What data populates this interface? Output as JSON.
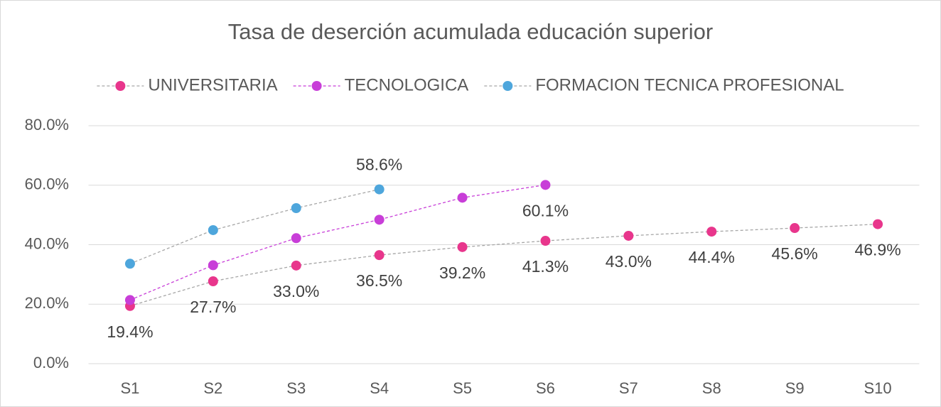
{
  "chart_data": {
    "type": "line",
    "title": "Tasa de deserción acumulada educación superior",
    "categories": [
      "S1",
      "S2",
      "S3",
      "S4",
      "S5",
      "S6",
      "S7",
      "S8",
      "S9",
      "S10"
    ],
    "series": [
      {
        "name": "UNIVERSITARIA",
        "color": "#e8368c",
        "line_color": "#a6a6a6",
        "label_position": "below",
        "values": [
          19.4,
          27.7,
          33.0,
          36.5,
          39.2,
          41.3,
          43.0,
          44.4,
          45.6,
          46.9
        ],
        "value_labels": [
          "19.4%",
          "27.7%",
          "33.0%",
          "36.5%",
          "39.2%",
          "41.3%",
          "43.0%",
          "44.4%",
          "45.6%",
          "46.9%"
        ]
      },
      {
        "name": "TECNOLOGICA",
        "color": "#c83ed8",
        "line_color": "#c83ed8",
        "label_position": "below",
        "values": [
          21.4,
          33.1,
          42.2,
          48.4,
          55.8,
          60.1,
          null,
          null,
          null,
          null
        ],
        "value_labels": [
          null,
          null,
          null,
          null,
          null,
          "60.1%",
          null,
          null,
          null,
          null
        ]
      },
      {
        "name": "FORMACION TECNICA PROFESIONAL",
        "color": "#4ea6dc",
        "line_color": "#a6a6a6",
        "label_position": "above",
        "values": [
          33.6,
          44.9,
          52.3,
          58.6,
          null,
          null,
          null,
          null,
          null,
          null
        ],
        "value_labels": [
          null,
          null,
          null,
          "58.6%",
          null,
          null,
          null,
          null,
          null,
          null
        ]
      }
    ],
    "ylim": [
      0,
      80
    ],
    "yticks": [
      {
        "value": 0,
        "label": "0.0%"
      },
      {
        "value": 20,
        "label": "20.0%"
      },
      {
        "value": 40,
        "label": "40.0%"
      },
      {
        "value": 60,
        "label": "60.0%"
      },
      {
        "value": 80,
        "label": "80.0%"
      }
    ],
    "grid": true,
    "legend": "top"
  }
}
